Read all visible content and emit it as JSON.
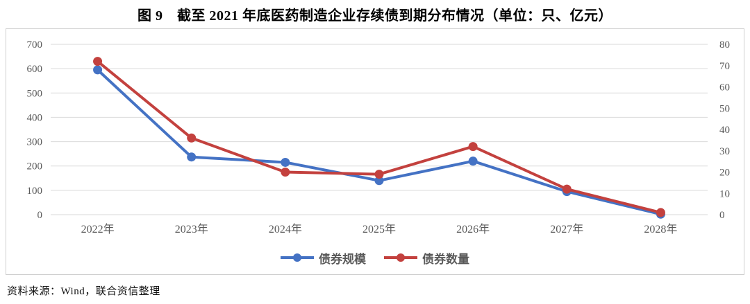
{
  "title": "图 9　截至 2021 年底医药制造企业存续债到期分布情况（单位：只、亿元）",
  "source_note": "资料来源：Wind，联合资信整理",
  "colors": {
    "scale_series": "#4472C4",
    "count_series": "#C3413E",
    "gridline": "#D9D9D9",
    "axis_label": "#595959",
    "box_border": "#CFCFCF"
  },
  "chart_data": {
    "type": "line",
    "title": "图 9　截至 2021 年底医药制造企业存续债到期分布情况（单位：只、亿元）",
    "categories": [
      "2022年",
      "2023年",
      "2024年",
      "2025年",
      "2026年",
      "2027年",
      "2028年"
    ],
    "series": [
      {
        "name": "债券规模",
        "axis": "left",
        "unit": "亿元",
        "color": "#4472C4",
        "values": [
          595,
          237,
          215,
          140,
          220,
          95,
          2
        ]
      },
      {
        "name": "债券数量",
        "axis": "right",
        "unit": "只",
        "color": "#C3413E",
        "values": [
          72,
          36,
          20,
          19,
          32,
          12,
          1
        ]
      }
    ],
    "left_axis": {
      "min": 0,
      "max": 700,
      "step": 100,
      "ticks": [
        0,
        100,
        200,
        300,
        400,
        500,
        600,
        700
      ]
    },
    "right_axis": {
      "min": 0,
      "max": 80,
      "step": 10,
      "ticks": [
        0,
        10,
        20,
        30,
        40,
        50,
        60,
        70,
        80
      ]
    },
    "grid": true,
    "legend_position": "bottom",
    "marker": "circle"
  }
}
